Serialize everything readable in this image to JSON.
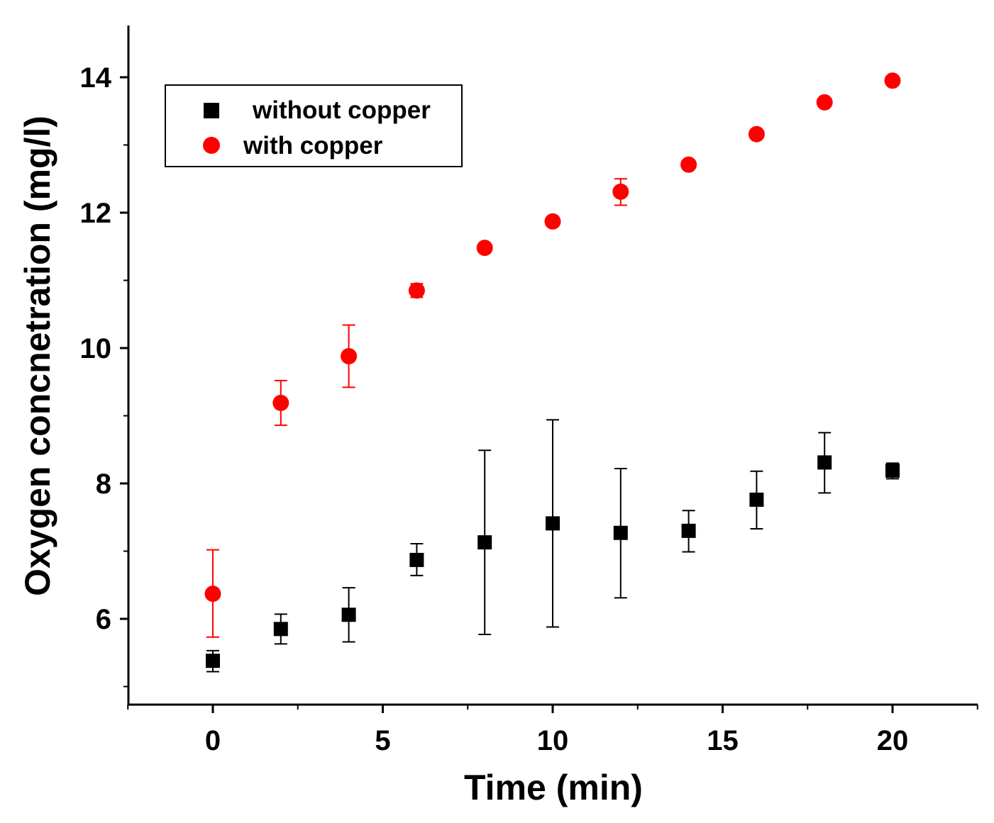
{
  "chart_data": {
    "type": "scatter",
    "title": "",
    "xlabel": "Time (min)",
    "ylabel": "Oxygen concnetration (mg/l)",
    "xlim": [
      -2.5,
      22.5
    ],
    "ylim": [
      4.75,
      14.75
    ],
    "x_ticks": [
      0,
      5,
      10,
      15,
      20
    ],
    "x_tick_labels": [
      "0",
      "5",
      "10",
      "15",
      "20"
    ],
    "y_ticks": [
      6,
      8,
      10,
      12,
      14
    ],
    "y_tick_labels": [
      "6",
      "8",
      "10",
      "12",
      "14"
    ],
    "legend_position": "top-left",
    "series": [
      {
        "name": "without copper",
        "marker": "square",
        "color": "#000000",
        "points": [
          {
            "x": 0,
            "y": 5.38,
            "err_low": 5.22,
            "err_high": 5.53
          },
          {
            "x": 2,
            "y": 5.85,
            "err_low": 5.63,
            "err_high": 6.07
          },
          {
            "x": 4,
            "y": 6.06,
            "err_low": 5.66,
            "err_high": 6.46
          },
          {
            "x": 6,
            "y": 6.87,
            "err_low": 6.64,
            "err_high": 7.11
          },
          {
            "x": 8,
            "y": 7.13,
            "err_low": 5.77,
            "err_high": 8.49
          },
          {
            "x": 10,
            "y": 7.41,
            "err_low": 5.88,
            "err_high": 8.94
          },
          {
            "x": 12,
            "y": 7.27,
            "err_low": 6.31,
            "err_high": 8.22
          },
          {
            "x": 14,
            "y": 7.3,
            "err_low": 6.99,
            "err_high": 7.6
          },
          {
            "x": 16,
            "y": 7.76,
            "err_low": 7.33,
            "err_high": 8.18
          },
          {
            "x": 18,
            "y": 8.31,
            "err_low": 7.86,
            "err_high": 8.75
          },
          {
            "x": 20,
            "y": 8.19,
            "err_low": 8.07,
            "err_high": 8.3
          }
        ]
      },
      {
        "name": "with copper",
        "marker": "circle",
        "color": "#ff0000",
        "points": [
          {
            "x": 0,
            "y": 6.37,
            "err_low": 5.73,
            "err_high": 7.02
          },
          {
            "x": 2,
            "y": 9.19,
            "err_low": 8.86,
            "err_high": 9.52
          },
          {
            "x": 4,
            "y": 9.88,
            "err_low": 9.42,
            "err_high": 10.34
          },
          {
            "x": 6,
            "y": 10.85,
            "err_low": 10.75,
            "err_high": 10.95
          },
          {
            "x": 8,
            "y": 11.48,
            "err_low": 11.43,
            "err_high": 11.53
          },
          {
            "x": 10,
            "y": 11.87,
            "err_low": 11.82,
            "err_high": 11.92
          },
          {
            "x": 12,
            "y": 12.31,
            "err_low": 12.11,
            "err_high": 12.5
          },
          {
            "x": 14,
            "y": 12.71,
            "err_low": 12.66,
            "err_high": 12.76
          },
          {
            "x": 16,
            "y": 13.16,
            "err_low": 13.11,
            "err_high": 13.21
          },
          {
            "x": 18,
            "y": 13.63,
            "err_low": 13.58,
            "err_high": 13.68
          },
          {
            "x": 20,
            "y": 13.95,
            "err_low": 13.9,
            "err_high": 14.0
          }
        ]
      }
    ]
  }
}
